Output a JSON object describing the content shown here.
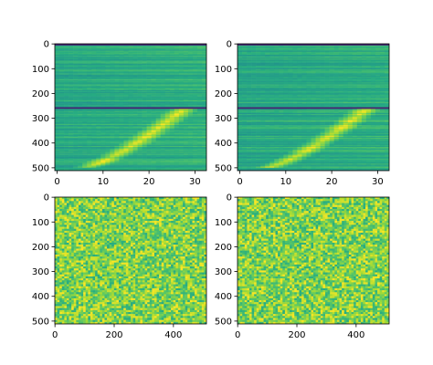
{
  "chart_data": [
    {
      "type": "heatmap",
      "panel": "top-left",
      "colormap": "viridis",
      "origin": "upper",
      "xlim": [
        -0.5,
        32.5
      ],
      "ylim": [
        511.5,
        -0.5
      ],
      "xticks": [
        "0",
        "10",
        "20",
        "30"
      ],
      "yticks": [
        "0",
        "100",
        "200",
        "300",
        "400",
        "500"
      ],
      "features": {
        "dark_band_rows": [
          0,
          256,
          511
        ],
        "bright_curve_start": [
          6,
          500
        ],
        "bright_curve_end": [
          28,
          257
        ]
      }
    },
    {
      "type": "heatmap",
      "panel": "top-right",
      "colormap": "viridis",
      "origin": "upper",
      "xlim": [
        -0.5,
        32.5
      ],
      "ylim": [
        511.5,
        -0.5
      ],
      "xticks": [
        "0",
        "10",
        "20",
        "30"
      ],
      "yticks": [
        "0",
        "100",
        "200",
        "300",
        "400",
        "500"
      ],
      "features": {
        "dark_band_rows": [
          0,
          256,
          511
        ],
        "bright_curve_start": [
          6,
          500
        ],
        "bright_curve_end": [
          28,
          257
        ]
      }
    },
    {
      "type": "heatmap",
      "panel": "bottom-left",
      "colormap": "viridis",
      "origin": "upper",
      "xlim": [
        -0.5,
        511.5
      ],
      "ylim": [
        511.5,
        -0.5
      ],
      "xticks": [
        "0",
        "200",
        "400"
      ],
      "yticks": [
        "0",
        "100",
        "200",
        "300",
        "400",
        "500"
      ],
      "features": {
        "pattern": "noise"
      }
    },
    {
      "type": "heatmap",
      "panel": "bottom-right",
      "colormap": "viridis",
      "origin": "upper",
      "xlim": [
        -0.5,
        511.5
      ],
      "ylim": [
        511.5,
        -0.5
      ],
      "xticks": [
        "0",
        "200",
        "400"
      ],
      "yticks": [
        "0",
        "100",
        "200",
        "300",
        "400",
        "500"
      ],
      "features": {
        "pattern": "noise"
      }
    }
  ]
}
